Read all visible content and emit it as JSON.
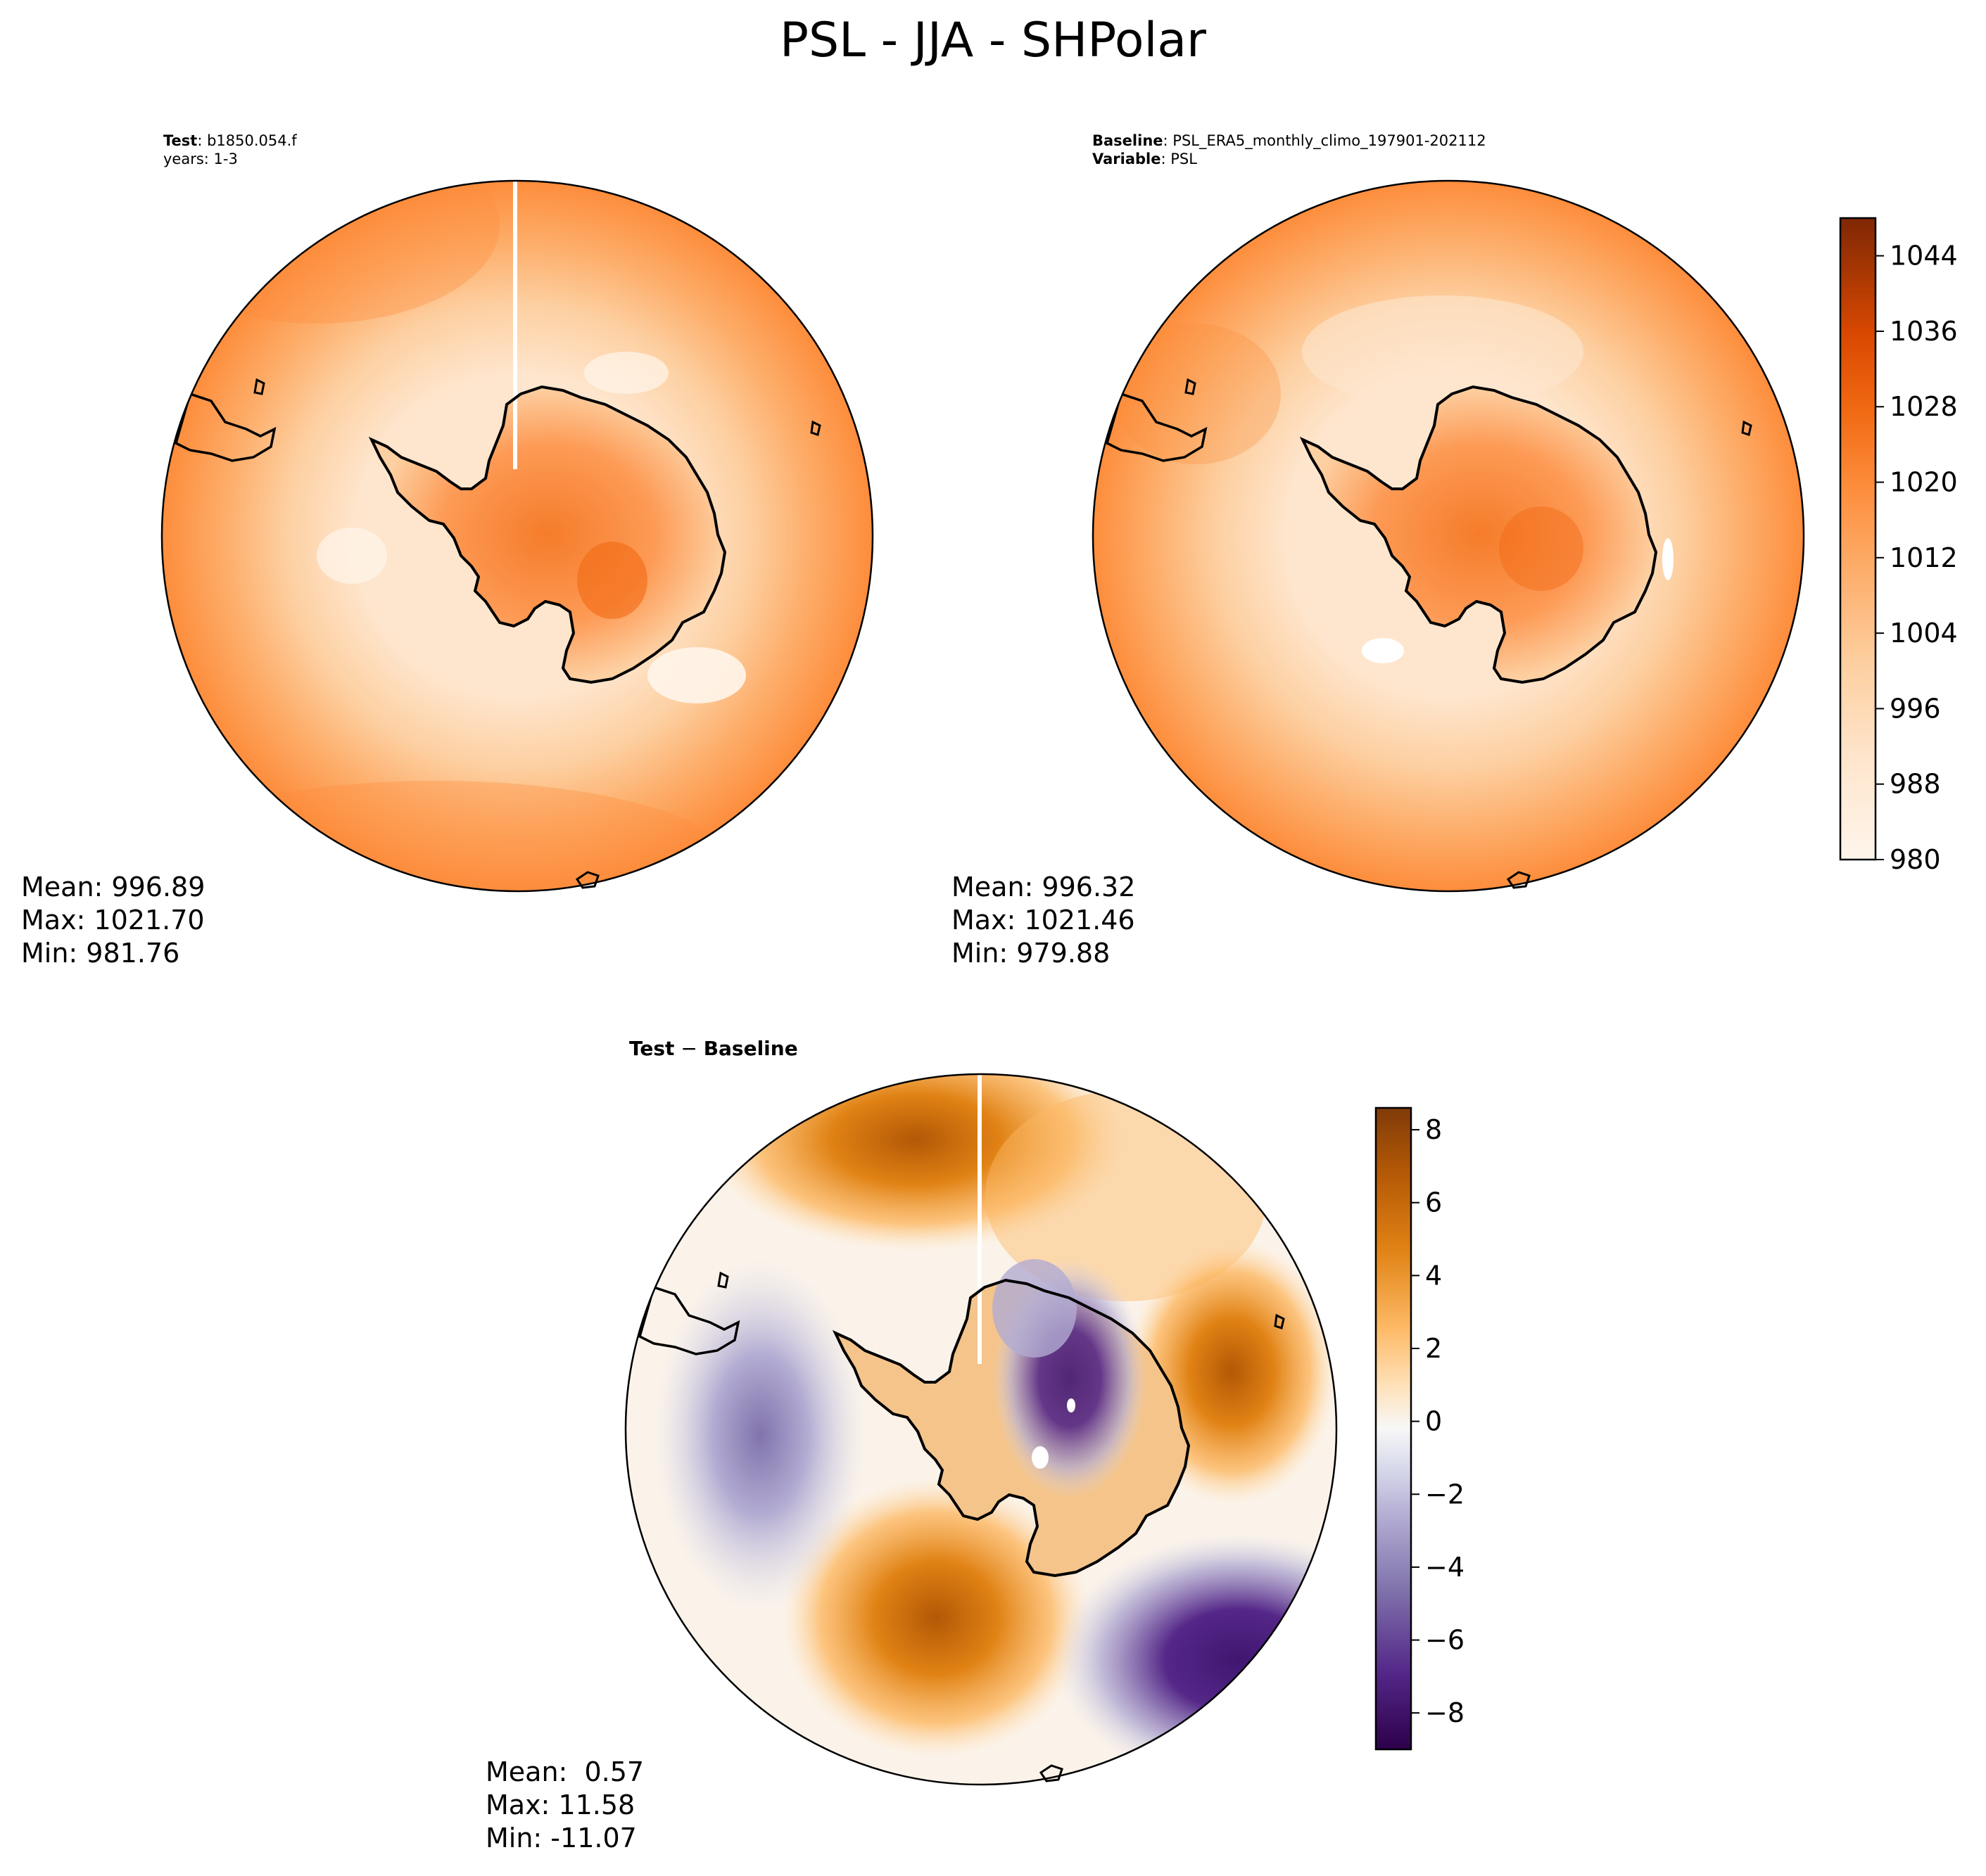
{
  "figure": {
    "title": "PSL - JJA - SHPolar"
  },
  "panels": {
    "test": {
      "title_key": "Test",
      "title_value": "b1850.054.f",
      "subtitle": "years: 1-3",
      "mean": "Mean: 996.89",
      "max": "Max: 1021.70",
      "min": "Min: 981.76"
    },
    "baseline": {
      "title_key": "Baseline",
      "title_value": "PSL_ERA5_monthly_climo_197901-202112",
      "subtitle_key": "Variable",
      "subtitle_value": "PSL",
      "mean": "Mean: 996.32",
      "max": "Max: 1021.46",
      "min": "Min: 979.88"
    },
    "difference": {
      "title_left": "Test",
      "title_sep": " − ",
      "title_right": "Baseline",
      "mean": "Mean:  0.57",
      "max": "Max: 11.58",
      "min": "Min: -11.07"
    }
  },
  "colorbars": {
    "main": {
      "colormap": "Oranges",
      "range": [
        980,
        1048
      ],
      "ticks": [
        "980",
        "988",
        "996",
        "1004",
        "1012",
        "1020",
        "1028",
        "1036",
        "1044"
      ],
      "tick_values": [
        980,
        988,
        996,
        1004,
        1012,
        1020,
        1028,
        1036,
        1044
      ],
      "colors": [
        "#fff5eb",
        "#fee6ce",
        "#fdd0a2",
        "#fdae6b",
        "#fd8d3c",
        "#f16913",
        "#d94801",
        "#a63603",
        "#7f2704"
      ]
    },
    "difference": {
      "colormap": "PuOr_r",
      "range": [
        -9,
        8.6
      ],
      "ticks": [
        "−8",
        "−6",
        "−4",
        "−2",
        "0",
        "2",
        "4",
        "6",
        "8"
      ],
      "tick_values": [
        -8,
        -6,
        -4,
        -2,
        0,
        2,
        4,
        6,
        8
      ],
      "colors": [
        "#2d004b",
        "#542788",
        "#8073ac",
        "#b2abd2",
        "#d8daeb",
        "#f7f7f7",
        "#fee0b6",
        "#fdb863",
        "#e08214",
        "#b35806",
        "#7f3b08"
      ]
    }
  },
  "map": {
    "projection": "South Polar Stereographic",
    "region": "SHPolar",
    "features": [
      "Antarctica coastline",
      "South America tip",
      "islands"
    ]
  }
}
